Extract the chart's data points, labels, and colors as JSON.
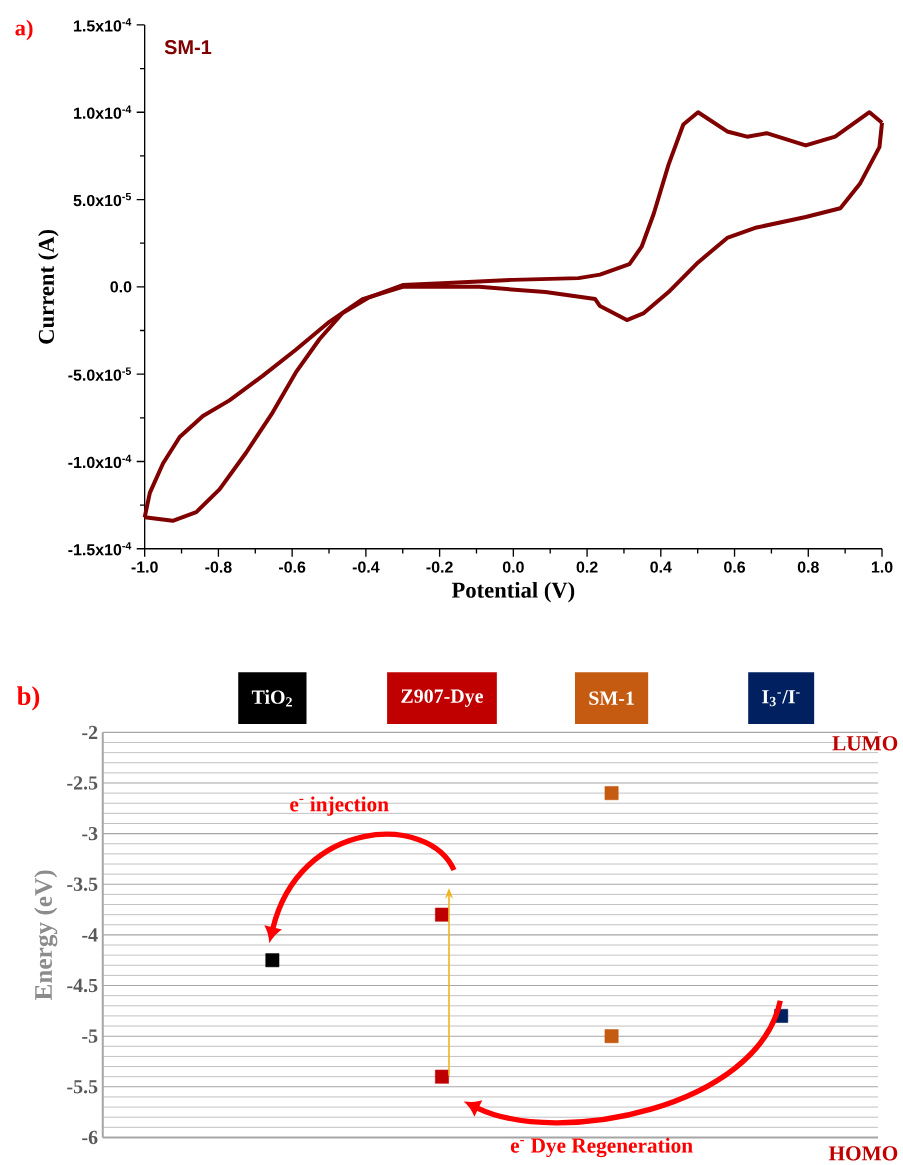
{
  "chart_data": [
    {
      "type": "line",
      "xlabel": "Potential (V)",
      "ylabel": "Current (A)",
      "annotations": [
        "a)"
      ],
      "xlim": [
        -1,
        1
      ],
      "ylim": [
        -0.00015,
        0.00015
      ],
      "xticks": [
        {
          "value": -1,
          "label": "-1.0"
        },
        {
          "value": -0.8,
          "label": "-0.8"
        },
        {
          "value": -0.6,
          "label": "-0.6"
        },
        {
          "value": -0.4,
          "label": "-0.4"
        },
        {
          "value": -0.2,
          "label": "-0.2"
        },
        {
          "value": 0,
          "label": "0.0"
        },
        {
          "value": 0.2,
          "label": "0.2"
        },
        {
          "value": 0.4,
          "label": "0.4"
        },
        {
          "value": 0.6,
          "label": "0.6"
        },
        {
          "value": 0.8,
          "label": "0.8"
        },
        {
          "value": 1,
          "label": "1.0"
        }
      ],
      "yticks": [
        {
          "value": -0.00015,
          "label": "-1.5x10$^{-4}$"
        },
        {
          "value": -0.0001,
          "label": "-1.0x10$^{-4}$"
        },
        {
          "value": -5e-05,
          "label": "-5.0x10$^{-5}$"
        },
        {
          "value": 0,
          "label": "0.0"
        },
        {
          "value": 5e-05,
          "label": "5.0x10$^{-5}$"
        },
        {
          "value": 0.0001,
          "label": "1.0x10$^{-4}$"
        },
        {
          "value": 0.00015,
          "label": "1.5x10$^{-4}$"
        }
      ],
      "series": [
        {
          "name": "SM-1",
          "color": "#800000",
          "x": [
            -1.0,
            -0.924,
            -0.86,
            -0.797,
            -0.725,
            -0.653,
            -0.59,
            -0.526,
            -0.463,
            -0.391,
            -0.3,
            -0.193,
            -0.003,
            0.177,
            0.235,
            0.315,
            0.348,
            0.381,
            0.421,
            0.461,
            0.501,
            0.58,
            0.634,
            0.687,
            0.793,
            0.873,
            0.966,
            1.0
          ],
          "values": [
            -0.000132,
            -0.000134,
            -0.000129,
            -0.000116,
            -9.5e-05,
            -7.2e-05,
            -4.9e-05,
            -3e-05,
            -1.5e-05,
            -6e-06,
            1e-06,
            2e-06,
            4e-06,
            5e-06,
            7e-06,
            1.3e-05,
            2.3e-05,
            4.2e-05,
            7e-05,
            9.3e-05,
            0.0001,
            8.9e-05,
            8.6e-05,
            8.8e-05,
            8.1e-05,
            8.6e-05,
            0.0001,
            9.4e-05
          ]
        },
        {
          "color": "#800000",
          "x": [
            1.0,
            0.993,
            0.94,
            0.887,
            0.793,
            0.66,
            0.58,
            0.501,
            0.421,
            0.354,
            0.308,
            0.235,
            0.222,
            0.087,
            -0.093,
            -0.3,
            -0.409,
            -0.499,
            -0.59,
            -0.68,
            -0.77,
            -0.842,
            -0.905,
            -0.95,
            -0.986,
            -1.0
          ],
          "values": [
            9.4e-05,
            8e-05,
            5.9e-05,
            4.5e-05,
            4e-05,
            3.4e-05,
            2.8e-05,
            1.4e-05,
            -3e-06,
            -1.5e-05,
            -1.9e-05,
            -1.1e-05,
            -7e-06,
            -3e-06,
            0.0,
            0.0,
            -7e-06,
            -2e-05,
            -3.6e-05,
            -5.1e-05,
            -6.5e-05,
            -7.4e-05,
            -8.6e-05,
            -0.000101,
            -0.000118,
            -0.000132
          ]
        }
      ]
    },
    {
      "type": "scatter",
      "marker": "square",
      "ylabel": "Energy (eV)",
      "categories": [
        "TiO$_{2}$",
        "Z907-Dye",
        "SM-1",
        "I$_{3}$$^{-}$/I$^{-}$"
      ],
      "ylim": [
        -6,
        -2
      ],
      "yticks": [
        -6,
        -5.5,
        -5,
        -4.5,
        -4,
        -3.5,
        -3,
        -2.5,
        -2
      ],
      "grid": "y",
      "annotations": [
        "b)",
        "LUMO",
        "HOMO",
        "e$^{-}$ injection",
        "e$^{-}$ Dye Regeneration"
      ],
      "series": [
        {
          "values": [
            -4.25,
            -3.8,
            -2.6,
            null
          ],
          "colors": [
            "#000000",
            "#c00000",
            "#c55a11",
            null
          ]
        },
        {
          "values": [
            null,
            -5.4,
            -5.0,
            -4.8
          ],
          "colors": [
            null,
            "#c00000",
            "#c55a11",
            "#002060"
          ]
        }
      ]
    }
  ]
}
